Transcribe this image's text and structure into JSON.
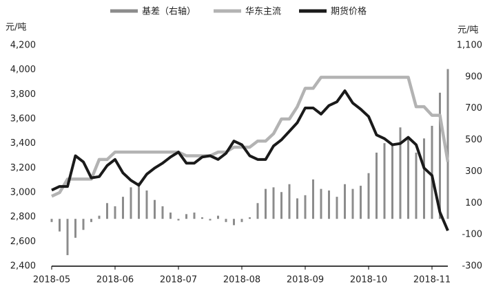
{
  "chart_data": {
    "type": "combo",
    "categories": [
      "2018-05",
      null,
      null,
      null,
      null,
      null,
      null,
      null,
      "2018-06",
      null,
      null,
      null,
      null,
      null,
      null,
      null,
      "2018-07",
      null,
      null,
      null,
      null,
      null,
      null,
      null,
      "2018-08",
      null,
      null,
      null,
      null,
      null,
      null,
      null,
      "2018-09",
      null,
      null,
      null,
      null,
      null,
      null,
      null,
      "2018-10",
      null,
      null,
      null,
      null,
      null,
      null,
      null,
      "2018-11",
      null,
      null
    ],
    "series": [
      {
        "name": "基差（右轴）",
        "color": "#8c8c8c",
        "axis": "y2",
        "kind": "bar",
        "values": [
          -20,
          -80,
          -230,
          -120,
          -70,
          -20,
          20,
          100,
          80,
          140,
          200,
          230,
          180,
          120,
          80,
          40,
          -10,
          30,
          40,
          10,
          -10,
          20,
          -20,
          -40,
          -20,
          10,
          100,
          190,
          200,
          170,
          220,
          130,
          150,
          250,
          190,
          180,
          140,
          220,
          190,
          210,
          290,
          420,
          480,
          470,
          580,
          520,
          420,
          510,
          590,
          800,
          950
        ]
      },
      {
        "name": "华东主流",
        "color": "#b3b3b3",
        "kind": "line",
        "values": [
          2970,
          3000,
          3110,
          3110,
          3110,
          3110,
          3270,
          3270,
          3330,
          3330,
          3330,
          3330,
          3330,
          3330,
          3330,
          3330,
          3330,
          3300,
          3300,
          3300,
          3300,
          3330,
          3330,
          3370,
          3370,
          3370,
          3420,
          3420,
          3480,
          3600,
          3600,
          3700,
          3850,
          3850,
          3940,
          3940,
          3940,
          3940,
          3940,
          3940,
          3940,
          3940,
          3940,
          3940,
          3940,
          3940,
          3700,
          3700,
          3630,
          3630,
          3250
        ]
      },
      {
        "name": "期货价格",
        "color": "#1a1a1a",
        "kind": "line",
        "values": [
          3020,
          3050,
          3050,
          3300,
          3250,
          3120,
          3130,
          3220,
          3270,
          3160,
          3100,
          3060,
          3150,
          3200,
          3240,
          3290,
          3330,
          3240,
          3240,
          3290,
          3300,
          3270,
          3320,
          3420,
          3390,
          3300,
          3270,
          3270,
          3380,
          3430,
          3500,
          3570,
          3690,
          3690,
          3640,
          3710,
          3740,
          3830,
          3730,
          3680,
          3620,
          3470,
          3440,
          3390,
          3400,
          3450,
          3390,
          3200,
          3140,
          2840,
          2690
        ]
      }
    ],
    "ylabel": "元/吨",
    "y2label": "元/吨",
    "ylim": [
      2400,
      4200
    ],
    "yticks": [
      {
        "value": 2400,
        "label": "2,400"
      },
      {
        "value": 2600,
        "label": "2,600"
      },
      {
        "value": 2800,
        "label": "2,800"
      },
      {
        "value": 3000,
        "label": "3,000"
      },
      {
        "value": 3200,
        "label": "3,200"
      },
      {
        "value": 3400,
        "label": "3,400"
      },
      {
        "value": 3600,
        "label": "3,600"
      },
      {
        "value": 3800,
        "label": "3,800"
      },
      {
        "value": 4000,
        "label": "4,000"
      },
      {
        "value": 4200,
        "label": "4,200"
      }
    ],
    "y2lim": [
      -300,
      1100
    ],
    "y2ticks": [
      -300,
      -100,
      100,
      300,
      500,
      700,
      900,
      {
        "value": 1100,
        "label": "1,100"
      }
    ],
    "legend": "top"
  }
}
